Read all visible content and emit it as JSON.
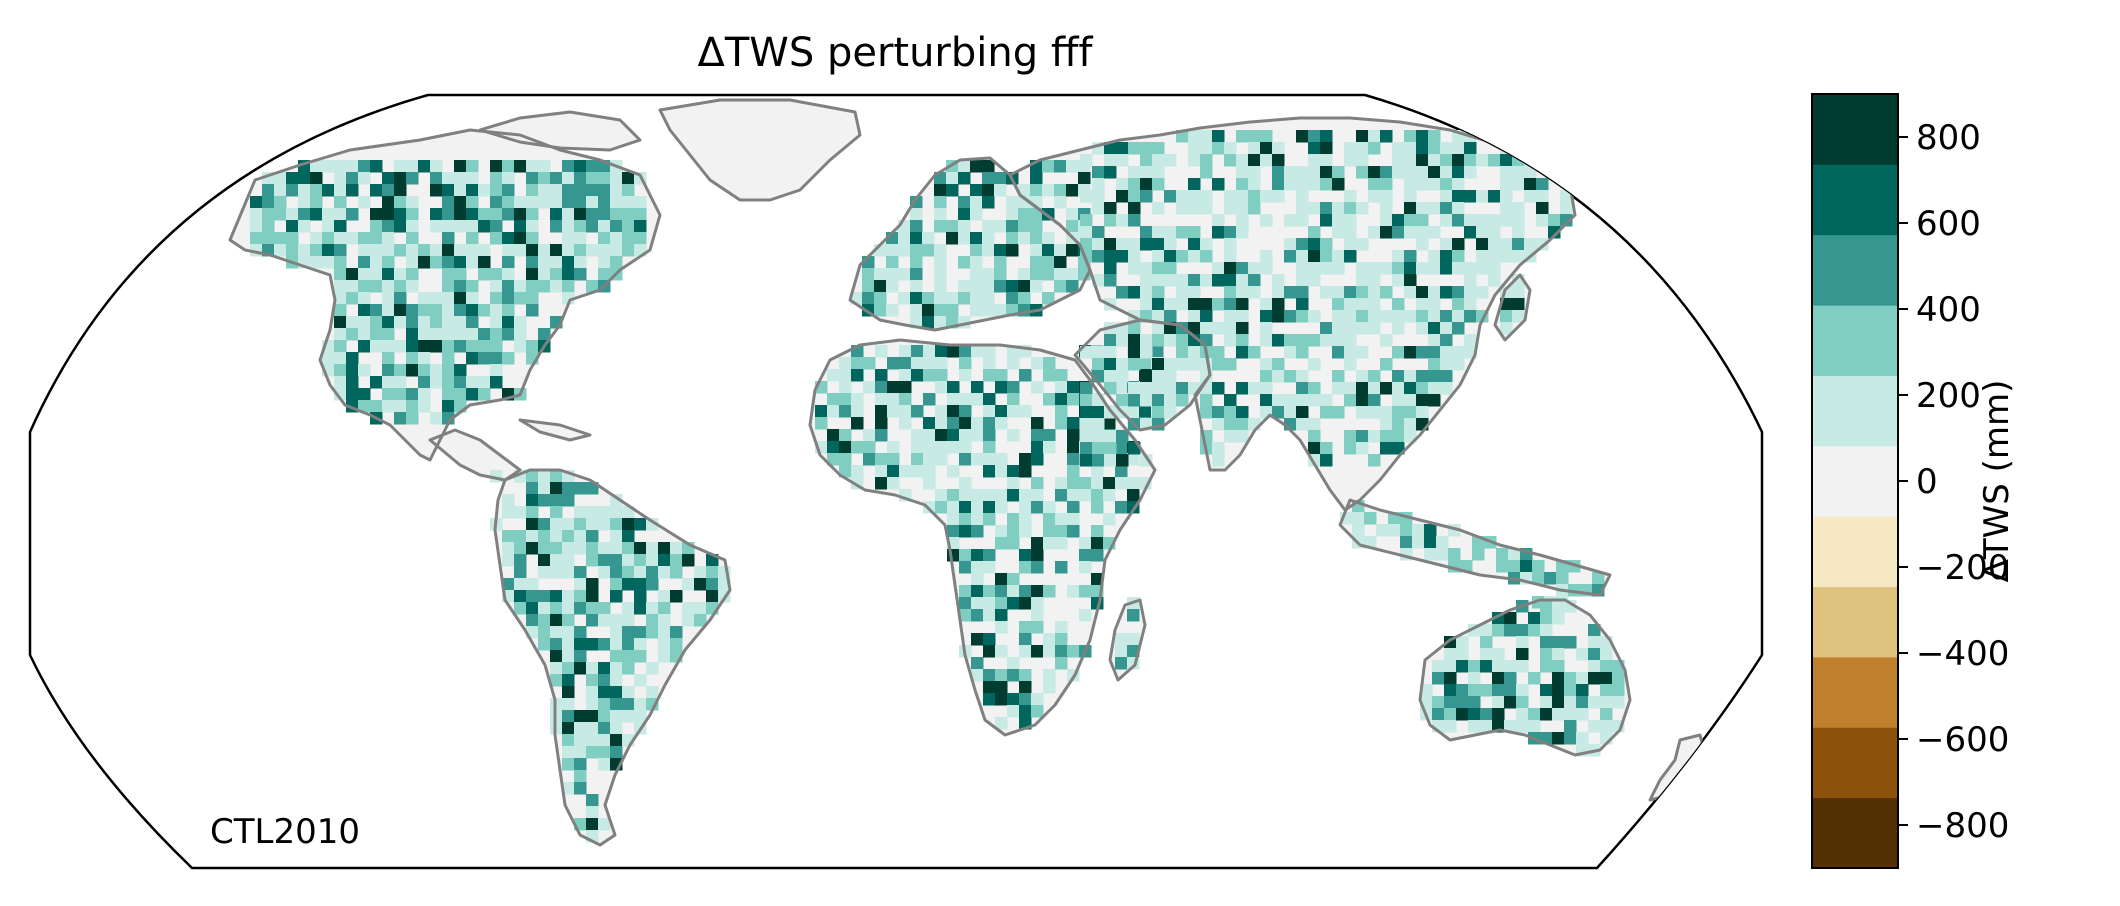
{
  "figure": {
    "title": "ΔTWS perturbing fff",
    "corner_label": "CTL2010"
  },
  "colorbar": {
    "label": "ΔTWS (mm)",
    "ticks": [
      "800",
      "600",
      "400",
      "200",
      "0",
      "−200",
      "−400",
      "−600",
      "−800"
    ],
    "tick_values": [
      800,
      600,
      400,
      200,
      0,
      -200,
      -400,
      -600,
      -800
    ],
    "levels": [
      -900,
      -700,
      -500,
      -300,
      -100,
      100,
      300,
      500,
      700,
      900
    ],
    "colors_bottom_to_top": [
      "#543005",
      "#8c510a",
      "#bf812d",
      "#dfc27d",
      "#f6e8c3",
      "#f2f2f2",
      "#c7eae5",
      "#80cdc1",
      "#35978f",
      "#01665e",
      "#003c30"
    ]
  },
  "map": {
    "projection": "Robinson",
    "coastline_color": "#808080",
    "border_color": "#c8c8c8",
    "land_base_class": "0"
  }
}
